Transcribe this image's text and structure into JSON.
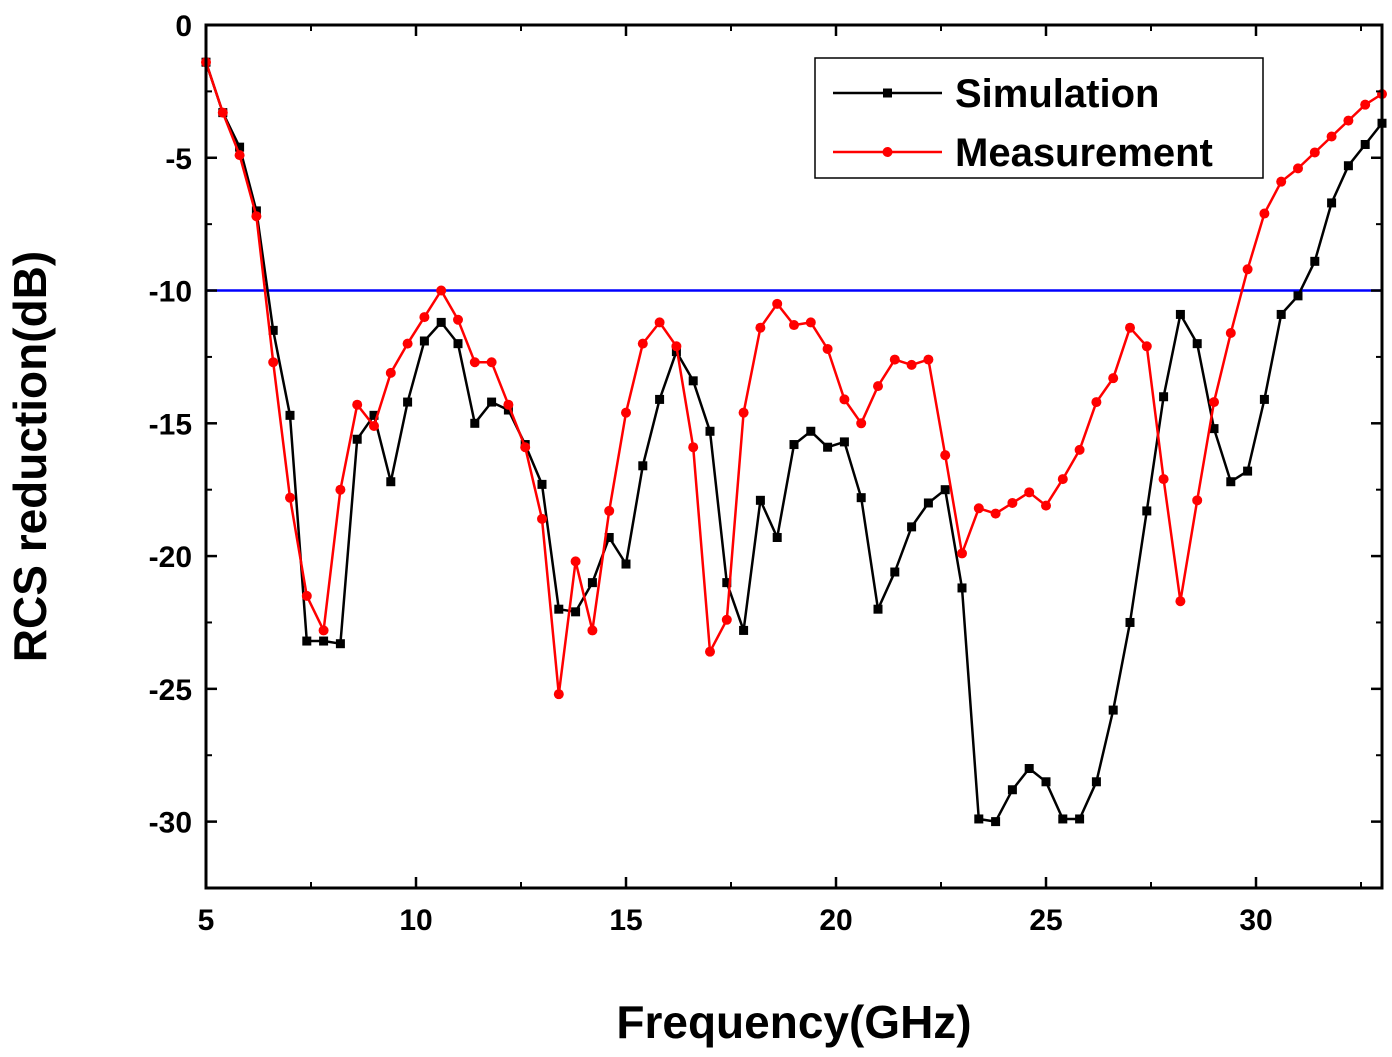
{
  "chart_data": {
    "type": "line",
    "title": "",
    "xlabel": "Frequency(GHz)",
    "ylabel": "RCS reduction(dB)",
    "xlim": [
      5,
      33
    ],
    "ylim": [
      -32.5,
      0
    ],
    "xticks": [
      5,
      10,
      15,
      20,
      25,
      30
    ],
    "yticks": [
      0,
      -5,
      -10,
      -15,
      -20,
      -25,
      -30
    ],
    "xtick_labels": [
      "5",
      "10",
      "15",
      "20",
      "25",
      "30"
    ],
    "ytick_labels": [
      "0",
      "-5",
      "-10",
      "-15",
      "-20",
      "-25",
      "-30"
    ],
    "grid": false,
    "legend_position": "top-right",
    "reference_line": {
      "y": -10,
      "color": "#0000ff"
    },
    "series": [
      {
        "name": "Simulation",
        "color": "#000000",
        "marker": "square",
        "x": [
          5.0,
          5.4,
          5.8,
          6.2,
          6.6,
          7.0,
          7.4,
          7.8,
          8.2,
          8.6,
          9.0,
          9.4,
          9.8,
          10.2,
          10.6,
          11.0,
          11.4,
          11.8,
          12.2,
          12.6,
          13.0,
          13.4,
          13.8,
          14.2,
          14.6,
          15.0,
          15.4,
          15.8,
          16.2,
          16.6,
          17.0,
          17.4,
          17.8,
          18.2,
          18.6,
          19.0,
          19.4,
          19.8,
          20.2,
          20.6,
          21.0,
          21.4,
          21.8,
          22.2,
          22.6,
          23.0,
          23.4,
          23.8,
          24.2,
          24.6,
          25.0,
          25.4,
          25.8,
          26.2,
          26.6,
          27.0,
          27.4,
          27.8,
          28.2,
          28.6,
          29.0,
          29.4,
          29.8,
          30.2,
          30.6,
          31.0,
          31.4,
          31.8,
          32.2,
          32.6,
          33.0
        ],
        "y": [
          -1.4,
          -3.3,
          -4.6,
          -7.0,
          -11.5,
          -14.7,
          -23.2,
          -23.2,
          -23.3,
          -15.6,
          -14.7,
          -17.2,
          -14.2,
          -11.9,
          -11.2,
          -12.0,
          -15.0,
          -14.2,
          -14.5,
          -15.8,
          -17.3,
          -22.0,
          -22.1,
          -21.0,
          -19.3,
          -20.3,
          -16.6,
          -14.1,
          -12.3,
          -13.4,
          -15.3,
          -21.0,
          -22.8,
          -17.9,
          -19.3,
          -15.8,
          -15.3,
          -15.9,
          -15.7,
          -17.8,
          -22.0,
          -20.6,
          -18.9,
          -18.0,
          -17.5,
          -21.2,
          -29.9,
          -30.0,
          -28.8,
          -28.0,
          -28.5,
          -29.9,
          -29.9,
          -28.5,
          -25.8,
          -22.5,
          -18.3,
          -14.0,
          -10.9,
          -12.0,
          -15.2,
          -17.2,
          -16.8,
          -14.1,
          -10.9,
          -10.2,
          -8.9,
          -6.7,
          -5.3,
          -4.5,
          -3.7
        ]
      },
      {
        "name": "Measurement",
        "color": "#ff0000",
        "marker": "circle",
        "x": [
          5.0,
          5.4,
          5.8,
          6.2,
          6.6,
          7.0,
          7.4,
          7.8,
          8.2,
          8.6,
          9.0,
          9.4,
          9.8,
          10.2,
          10.6,
          11.0,
          11.4,
          11.8,
          12.2,
          12.6,
          13.0,
          13.4,
          13.8,
          14.2,
          14.6,
          15.0,
          15.4,
          15.8,
          16.2,
          16.6,
          17.0,
          17.4,
          17.8,
          18.2,
          18.6,
          19.0,
          19.4,
          19.8,
          20.2,
          20.6,
          21.0,
          21.4,
          21.8,
          22.2,
          22.6,
          23.0,
          23.4,
          23.8,
          24.2,
          24.6,
          25.0,
          25.4,
          25.8,
          26.2,
          26.6,
          27.0,
          27.4,
          27.8,
          28.2,
          28.6,
          29.0,
          29.4,
          29.8,
          30.2,
          30.6,
          31.0,
          31.4,
          31.8,
          32.2,
          32.6,
          33.0
        ],
        "y": [
          -1.4,
          -3.3,
          -4.9,
          -7.2,
          -12.7,
          -17.8,
          -21.5,
          -22.8,
          -17.5,
          -14.3,
          -15.1,
          -13.1,
          -12.0,
          -11.0,
          -10.0,
          -11.1,
          -12.7,
          -12.7,
          -14.3,
          -15.9,
          -18.6,
          -25.2,
          -20.2,
          -22.8,
          -18.3,
          -14.6,
          -12.0,
          -11.2,
          -12.1,
          -15.9,
          -23.6,
          -22.4,
          -14.6,
          -11.4,
          -10.5,
          -11.3,
          -11.2,
          -12.2,
          -14.1,
          -15.0,
          -13.6,
          -12.6,
          -12.8,
          -12.6,
          -16.2,
          -19.9,
          -18.2,
          -18.4,
          -18.0,
          -17.6,
          -18.1,
          -17.1,
          -16.0,
          -14.2,
          -13.3,
          -11.4,
          -12.1,
          -17.1,
          -21.7,
          -17.9,
          -14.2,
          -11.6,
          -9.2,
          -7.1,
          -5.9,
          -5.4,
          -4.8,
          -4.2,
          -3.6,
          -3.0,
          -2.6
        ]
      }
    ]
  }
}
